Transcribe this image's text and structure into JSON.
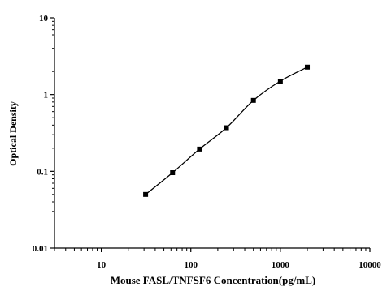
{
  "chart_data": {
    "type": "line",
    "title": "",
    "xlabel": "Mouse FASL/TNFSF6 Concentration(pg/mL)",
    "ylabel": "Optical Density",
    "x_scale": "log",
    "y_scale": "log",
    "xlim": [
      3,
      10000
    ],
    "ylim": [
      0.01,
      10
    ],
    "x_ticks": [
      10,
      100,
      1000,
      10000
    ],
    "x_tick_labels": [
      "10",
      "100",
      "1000",
      "10000"
    ],
    "y_ticks": [
      0.01,
      0.1,
      1,
      10
    ],
    "y_tick_labels": [
      "0.01",
      "0.1",
      "1",
      "10"
    ],
    "grid": false,
    "legend": "none",
    "marker": "square",
    "color": "#000000",
    "series": [
      {
        "x": [
          31.25,
          62.5,
          125,
          250,
          500,
          1000,
          2000
        ],
        "y": [
          0.05,
          0.096,
          0.195,
          0.37,
          0.84,
          1.5,
          2.28
        ]
      }
    ]
  }
}
